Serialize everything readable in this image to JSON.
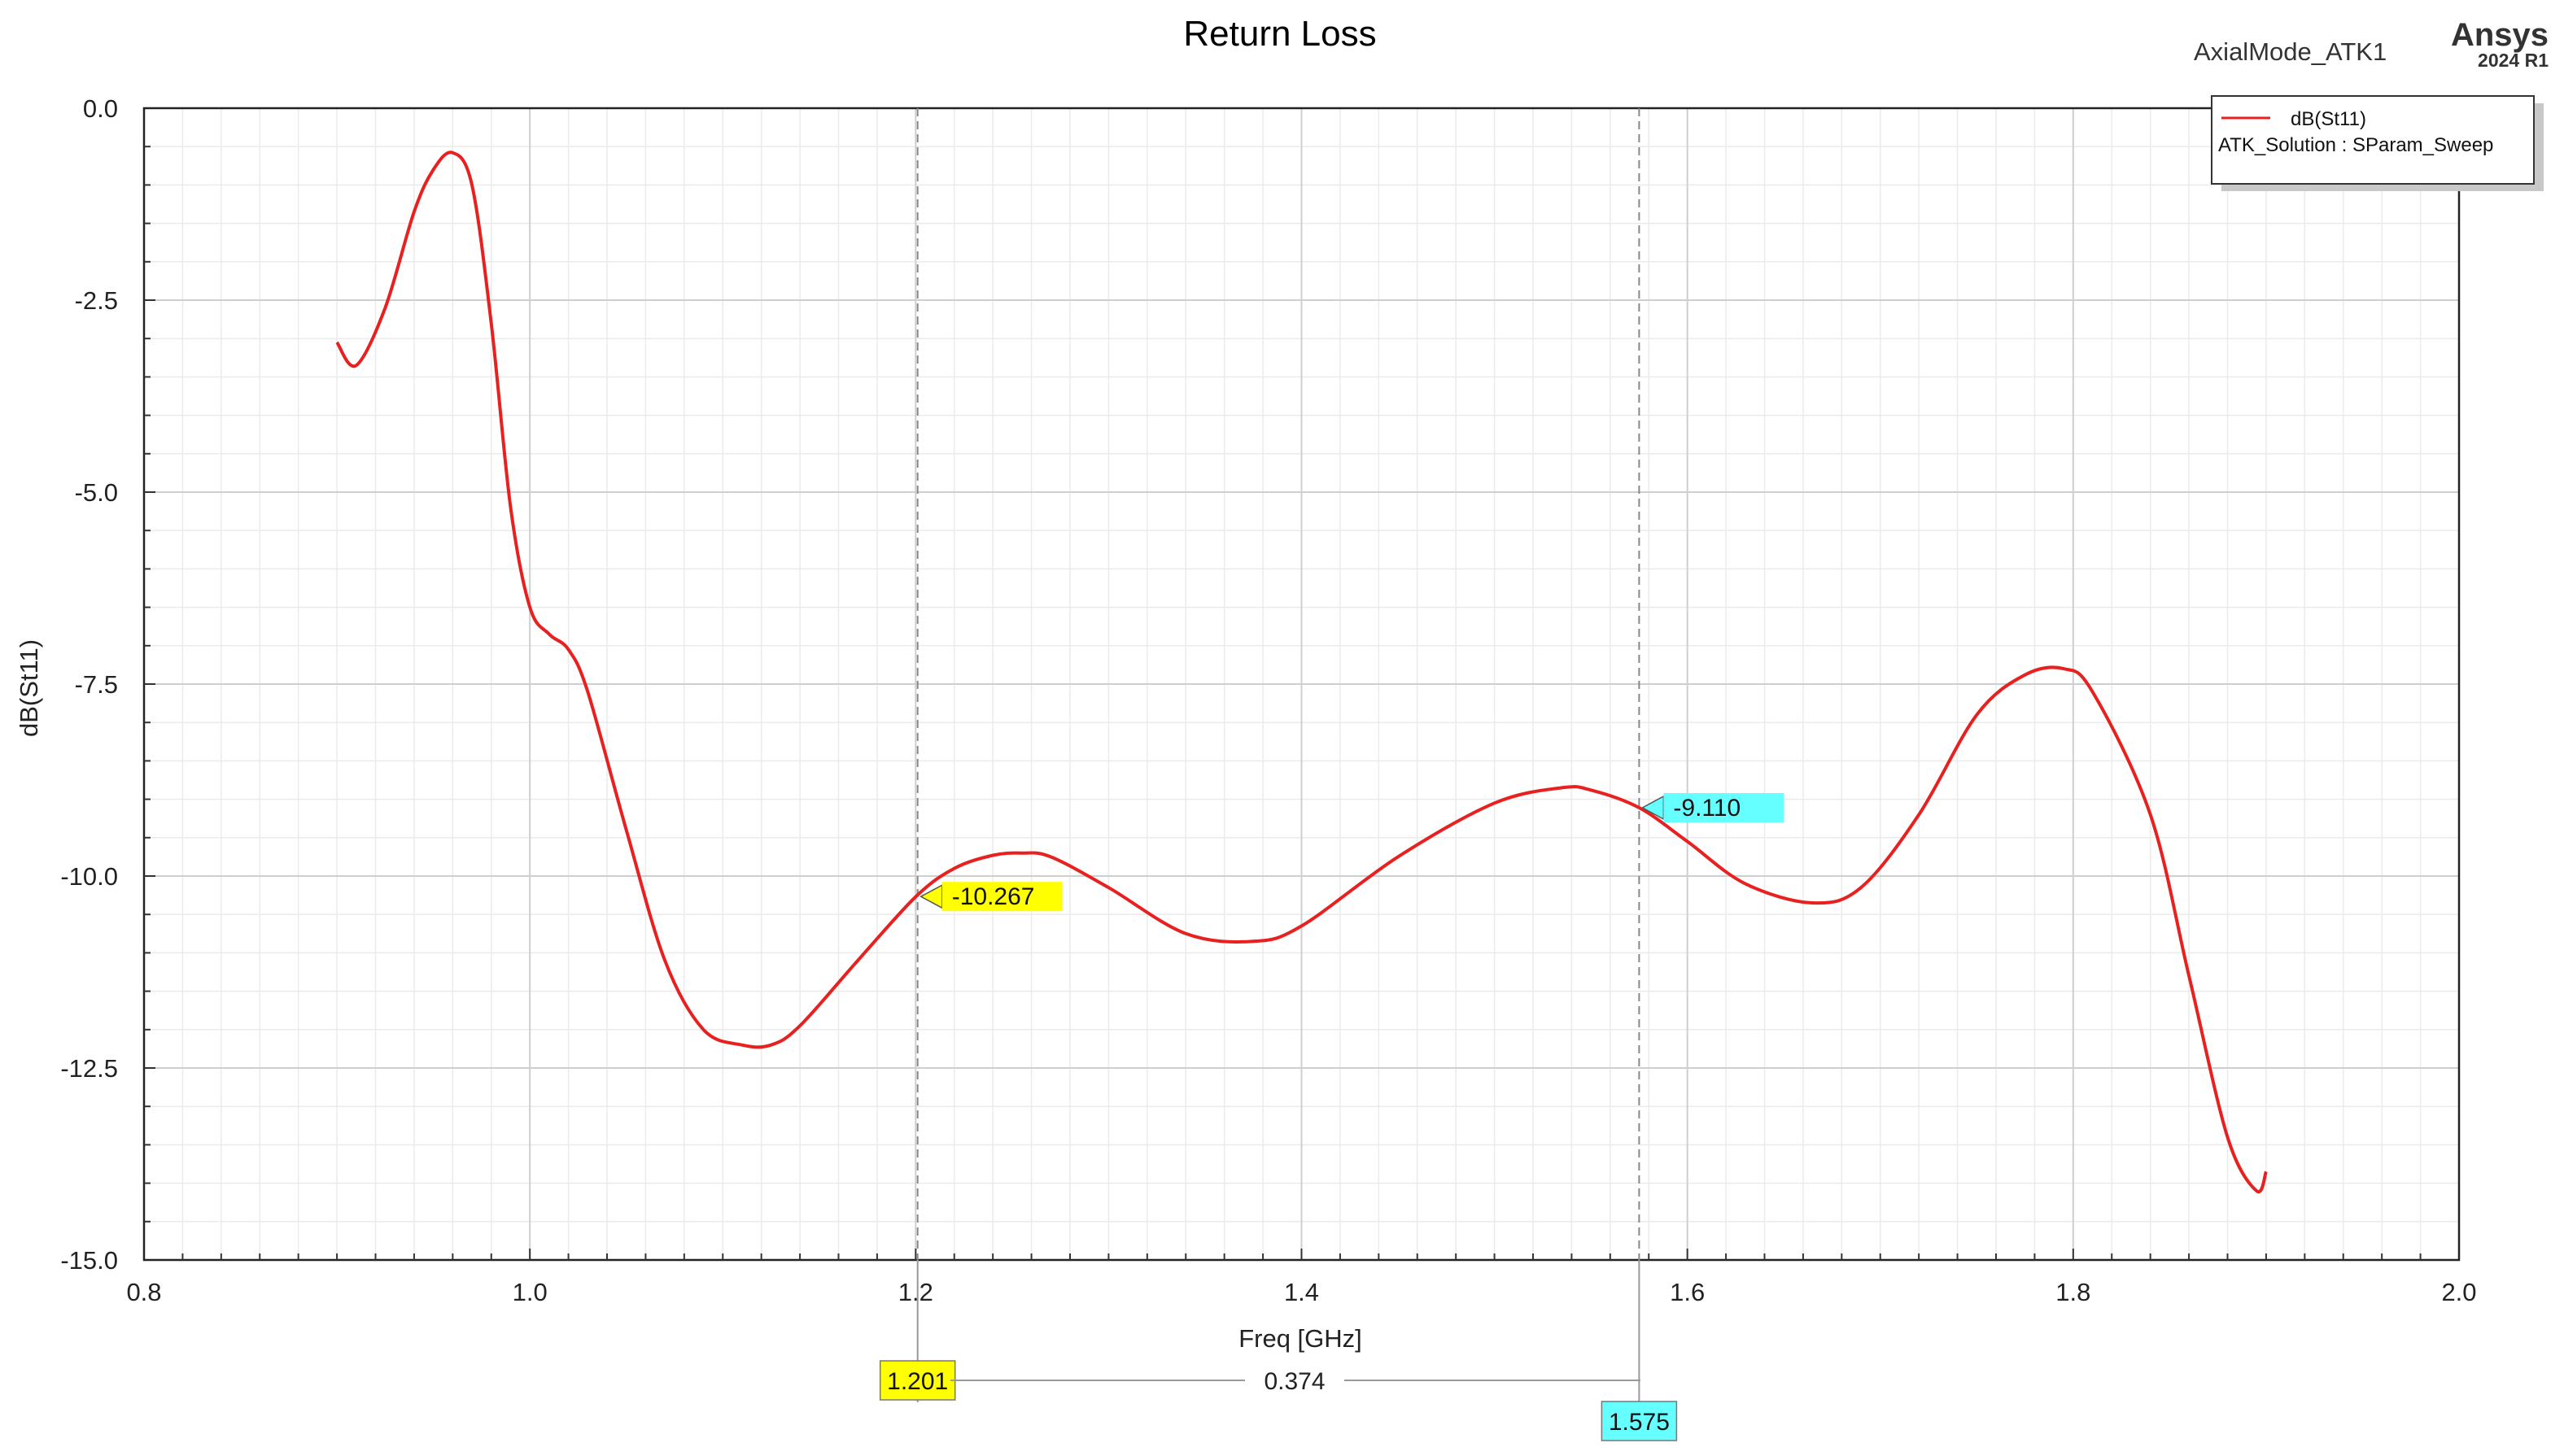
{
  "chart_data": {
    "type": "line",
    "title": "Return Loss",
    "design_name": "AxialMode_ATK1",
    "logo": {
      "name": "Ansys",
      "version": "2024 R1"
    },
    "xlabel": "Freq [GHz]",
    "ylabel": "dB(St11)",
    "xlim": [
      0.8,
      2.0
    ],
    "ylim": [
      -15.0,
      0.0
    ],
    "x_ticks": [
      "0.8",
      "1.0",
      "1.2",
      "1.4",
      "1.6",
      "1.8",
      "2.0"
    ],
    "y_ticks": [
      "0.0",
      "-2.5",
      "-5.0",
      "-7.5",
      "-10.0",
      "-12.5",
      "-15.0"
    ],
    "grid": true,
    "legend_position": "top-right",
    "legend": {
      "series_name": "dB(St11)",
      "series_source": "ATK_Solution : SParam_Sweep"
    },
    "series": [
      {
        "name": "dB(St11)",
        "color": "#e8201f",
        "x": [
          0.9,
          0.91,
          0.925,
          0.94,
          0.95,
          0.96,
          0.97,
          0.98,
          0.99,
          1.0,
          1.01,
          1.02,
          1.03,
          1.05,
          1.07,
          1.09,
          1.11,
          1.125,
          1.14,
          1.17,
          1.2,
          1.22,
          1.24,
          1.255,
          1.27,
          1.3,
          1.34,
          1.375,
          1.4,
          1.45,
          1.5,
          1.535,
          1.55,
          1.575,
          1.6,
          1.63,
          1.665,
          1.69,
          1.72,
          1.75,
          1.775,
          1.795,
          1.81,
          1.84,
          1.86,
          1.88,
          1.895,
          1.9
        ],
        "y": [
          -3.05,
          -3.35,
          -2.6,
          -1.35,
          -0.8,
          -0.58,
          -1.0,
          -2.8,
          -5.2,
          -6.5,
          -6.85,
          -7.05,
          -7.6,
          -9.4,
          -11.1,
          -12.0,
          -12.2,
          -12.2,
          -11.95,
          -11.1,
          -10.27,
          -9.9,
          -9.73,
          -9.7,
          -9.75,
          -10.15,
          -10.75,
          -10.85,
          -10.65,
          -9.75,
          -9.05,
          -8.85,
          -8.88,
          -9.11,
          -9.55,
          -10.1,
          -10.35,
          -10.15,
          -9.2,
          -7.9,
          -7.38,
          -7.3,
          -7.6,
          -9.2,
          -11.3,
          -13.4,
          -14.1,
          -13.85
        ]
      }
    ],
    "markers": [
      {
        "label": "-10.267",
        "x": 1.201,
        "y": -10.267,
        "x_label": "1.201",
        "color": "#ffff00"
      },
      {
        "label": "-9.110",
        "x": 1.575,
        "y": -9.11,
        "x_label": "1.575",
        "color": "#66ffff"
      }
    ],
    "delta": {
      "label": "0.374"
    }
  }
}
